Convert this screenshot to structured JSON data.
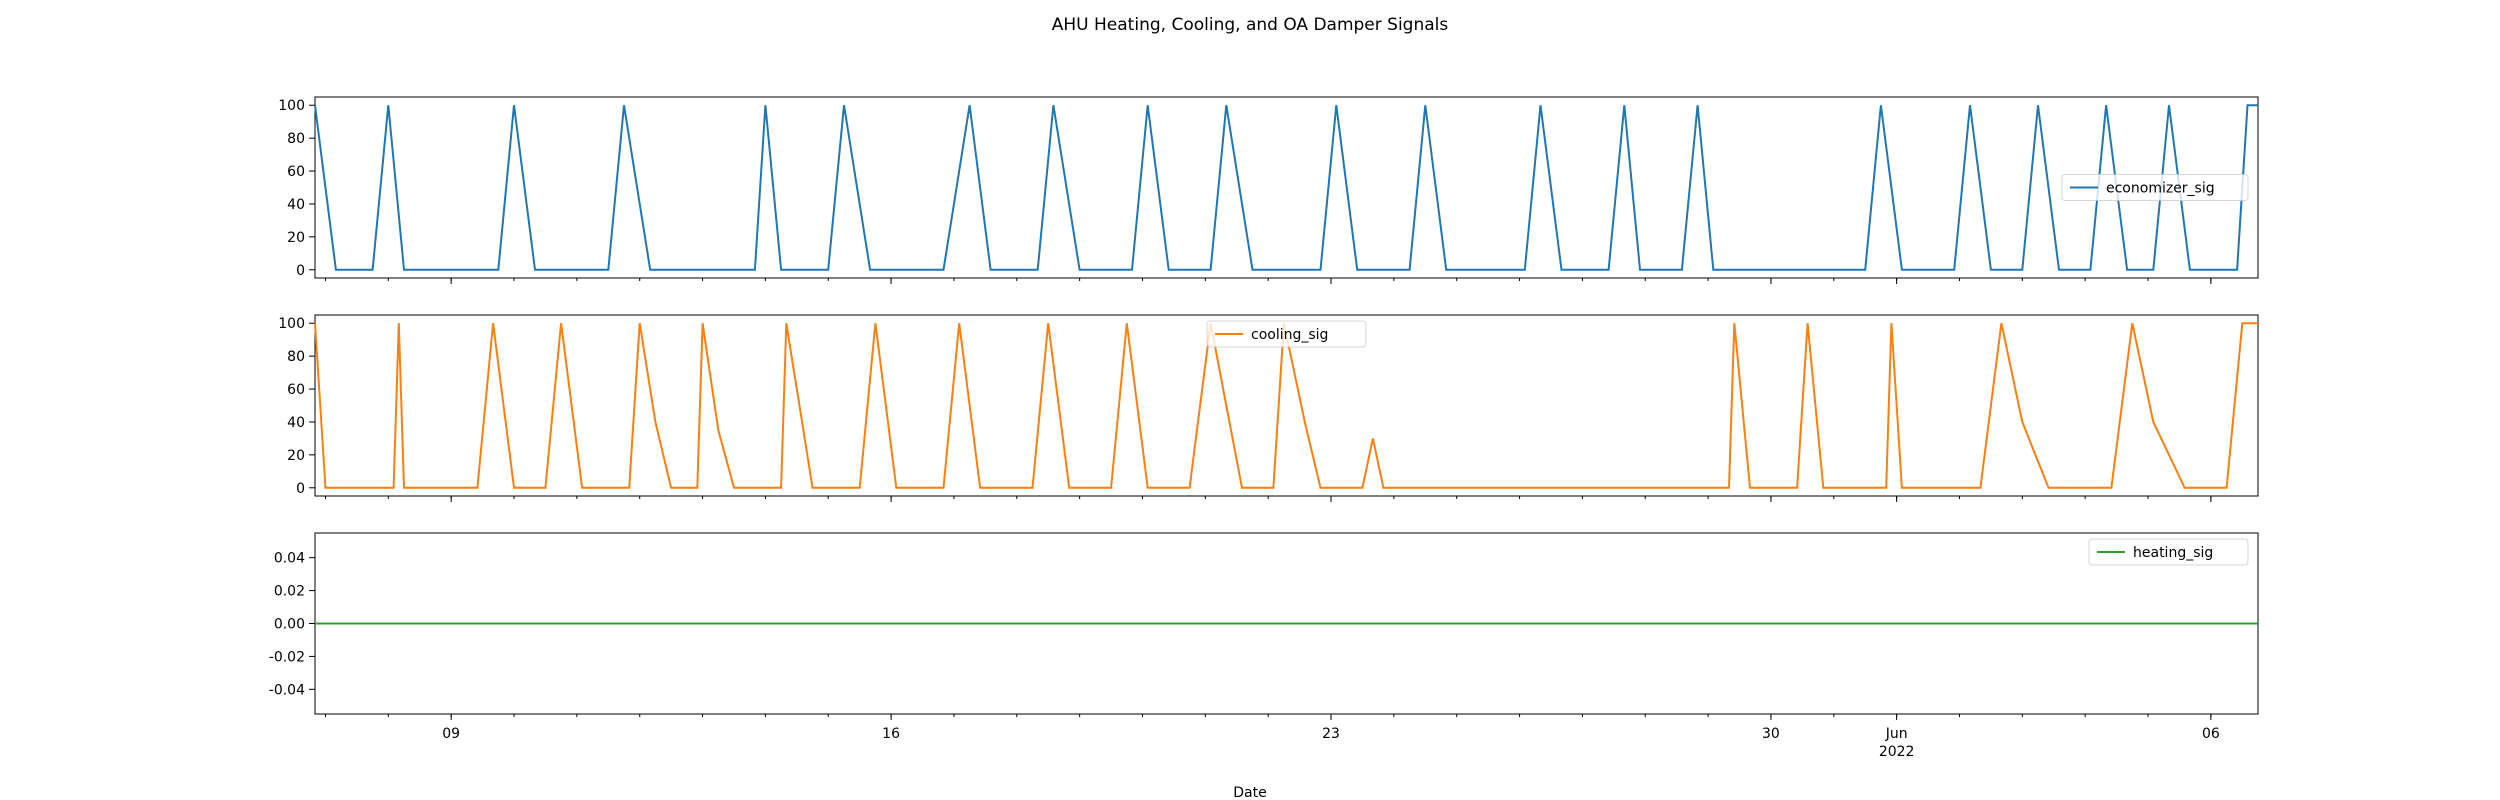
{
  "chart_data": {
    "type": "line",
    "title": "AHU Heating, Cooling, and OA Damper Signals",
    "xlabel": "Date",
    "x_range": [
      "2022-05-06T20:00",
      "2022-06-06T18:00"
    ],
    "x_major_ticks": [
      {
        "date": "2022-05-09",
        "label": "09"
      },
      {
        "date": "2022-05-16",
        "label": "16"
      },
      {
        "date": "2022-05-23",
        "label": "23"
      },
      {
        "date": "2022-05-30",
        "label": "30"
      },
      {
        "date": "2022-06-01",
        "label": "Jun",
        "sublabel": "2022"
      },
      {
        "date": "2022-06-06",
        "label": "06"
      }
    ],
    "panels": [
      {
        "series": "economizer_sig",
        "color": "#1f77b4",
        "ylim": [
          -5,
          105
        ],
        "yticks": [
          "0",
          "20",
          "40",
          "60",
          "80",
          "100"
        ],
        "legend_loc": "center-right",
        "description_points": [
          [
            "2022-05-06T20:00",
            100
          ],
          [
            "2022-05-07T04:00",
            0
          ],
          [
            "2022-05-07T18:00",
            0
          ],
          [
            "2022-05-08T00:00",
            100
          ],
          [
            "2022-05-08T06:00",
            0
          ],
          [
            "2022-05-09T18:00",
            0
          ],
          [
            "2022-05-10T00:00",
            100
          ],
          [
            "2022-05-10T08:00",
            0
          ],
          [
            "2022-05-11T12:00",
            0
          ],
          [
            "2022-05-11T18:00",
            100
          ],
          [
            "2022-05-12T04:00",
            0
          ],
          [
            "2022-05-13T20:00",
            0
          ],
          [
            "2022-05-14T00:00",
            100
          ],
          [
            "2022-05-14T06:00",
            0
          ],
          [
            "2022-05-15T00:00",
            0
          ],
          [
            "2022-05-15T06:00",
            100
          ],
          [
            "2022-05-15T16:00",
            0
          ],
          [
            "2022-05-16T20:00",
            0
          ],
          [
            "2022-05-17T06:00",
            100
          ],
          [
            "2022-05-17T14:00",
            0
          ],
          [
            "2022-05-18T08:00",
            0
          ],
          [
            "2022-05-18T14:00",
            100
          ],
          [
            "2022-05-19T00:00",
            0
          ],
          [
            "2022-05-19T20:00",
            0
          ],
          [
            "2022-05-20T02:00",
            100
          ],
          [
            "2022-05-20T10:00",
            0
          ],
          [
            "2022-05-21T02:00",
            0
          ],
          [
            "2022-05-21T08:00",
            100
          ],
          [
            "2022-05-21T18:00",
            0
          ],
          [
            "2022-05-22T20:00",
            0
          ],
          [
            "2022-05-23T02:00",
            100
          ],
          [
            "2022-05-23T10:00",
            0
          ],
          [
            "2022-05-24T06:00",
            0
          ],
          [
            "2022-05-24T12:00",
            100
          ],
          [
            "2022-05-24T20:00",
            0
          ],
          [
            "2022-05-26T02:00",
            0
          ],
          [
            "2022-05-26T08:00",
            100
          ],
          [
            "2022-05-26T16:00",
            0
          ],
          [
            "2022-05-27T10:00",
            0
          ],
          [
            "2022-05-27T16:00",
            100
          ],
          [
            "2022-05-27T22:00",
            0
          ],
          [
            "2022-05-28T14:00",
            0
          ],
          [
            "2022-05-28T20:00",
            100
          ],
          [
            "2022-05-29T02:00",
            0
          ],
          [
            "2022-05-31T12:00",
            0
          ],
          [
            "2022-05-31T18:00",
            100
          ],
          [
            "2022-06-01T02:00",
            0
          ],
          [
            "2022-06-01T22:00",
            0
          ],
          [
            "2022-06-02T04:00",
            100
          ],
          [
            "2022-06-02T12:00",
            0
          ],
          [
            "2022-06-03T00:00",
            0
          ],
          [
            "2022-06-03T06:00",
            100
          ],
          [
            "2022-06-03T14:00",
            0
          ],
          [
            "2022-06-04T02:00",
            0
          ],
          [
            "2022-06-04T08:00",
            100
          ],
          [
            "2022-06-04T16:00",
            0
          ],
          [
            "2022-06-05T02:00",
            0
          ],
          [
            "2022-06-05T08:00",
            100
          ],
          [
            "2022-06-05T16:00",
            0
          ],
          [
            "2022-06-06T10:00",
            0
          ],
          [
            "2022-06-06T14:00",
            100
          ],
          [
            "2022-06-06T18:00",
            100
          ]
        ]
      },
      {
        "series": "cooling_sig",
        "color": "#ff7f0e",
        "ylim": [
          -5,
          105
        ],
        "yticks": [
          "0",
          "20",
          "40",
          "60",
          "80",
          "100"
        ],
        "legend_loc": "upper-center",
        "description_points": [
          [
            "2022-05-06T20:00",
            100
          ],
          [
            "2022-05-07T00:00",
            0
          ],
          [
            "2022-05-08T02:00",
            0
          ],
          [
            "2022-05-08T04:00",
            100
          ],
          [
            "2022-05-08T06:00",
            0
          ],
          [
            "2022-05-09T10:00",
            0
          ],
          [
            "2022-05-09T16:00",
            100
          ],
          [
            "2022-05-10T00:00",
            0
          ],
          [
            "2022-05-10T12:00",
            0
          ],
          [
            "2022-05-10T18:00",
            100
          ],
          [
            "2022-05-11T02:00",
            0
          ],
          [
            "2022-05-11T20:00",
            0
          ],
          [
            "2022-05-12T00:00",
            100
          ],
          [
            "2022-05-12T06:00",
            40
          ],
          [
            "2022-05-12T12:00",
            0
          ],
          [
            "2022-05-12T22:00",
            0
          ],
          [
            "2022-05-13T00:00",
            100
          ],
          [
            "2022-05-13T06:00",
            35
          ],
          [
            "2022-05-13T12:00",
            0
          ],
          [
            "2022-05-14T06:00",
            0
          ],
          [
            "2022-05-14T08:00",
            100
          ],
          [
            "2022-05-14T14:00",
            40
          ],
          [
            "2022-05-14T18:00",
            0
          ],
          [
            "2022-05-15T12:00",
            0
          ],
          [
            "2022-05-15T18:00",
            100
          ],
          [
            "2022-05-16T02:00",
            0
          ],
          [
            "2022-05-16T20:00",
            0
          ],
          [
            "2022-05-17T02:00",
            100
          ],
          [
            "2022-05-17T10:00",
            0
          ],
          [
            "2022-05-18T06:00",
            0
          ],
          [
            "2022-05-18T12:00",
            100
          ],
          [
            "2022-05-18T20:00",
            0
          ],
          [
            "2022-05-19T12:00",
            0
          ],
          [
            "2022-05-19T18:00",
            100
          ],
          [
            "2022-05-20T02:00",
            0
          ],
          [
            "2022-05-20T18:00",
            0
          ],
          [
            "2022-05-21T02:00",
            100
          ],
          [
            "2022-05-21T14:00",
            0
          ],
          [
            "2022-05-22T02:00",
            0
          ],
          [
            "2022-05-22T06:00",
            100
          ],
          [
            "2022-05-22T14:00",
            40
          ],
          [
            "2022-05-22T20:00",
            0
          ],
          [
            "2022-05-23T12:00",
            0
          ],
          [
            "2022-05-23T16:00",
            30
          ],
          [
            "2022-05-23T20:00",
            0
          ],
          [
            "2022-05-28T12:00",
            0
          ],
          [
            "2022-05-29T08:00",
            0
          ],
          [
            "2022-05-29T10:00",
            100
          ],
          [
            "2022-05-29T16:00",
            0
          ],
          [
            "2022-05-30T10:00",
            0
          ],
          [
            "2022-05-30T14:00",
            100
          ],
          [
            "2022-05-30T20:00",
            0
          ],
          [
            "2022-05-31T20:00",
            0
          ],
          [
            "2022-05-31T22:00",
            100
          ],
          [
            "2022-06-01T02:00",
            0
          ],
          [
            "2022-06-02T08:00",
            0
          ],
          [
            "2022-06-02T16:00",
            100
          ],
          [
            "2022-06-03T00:00",
            40
          ],
          [
            "2022-06-03T10:00",
            0
          ],
          [
            "2022-06-04T10:00",
            0
          ],
          [
            "2022-06-04T18:00",
            100
          ],
          [
            "2022-06-05T02:00",
            40
          ],
          [
            "2022-06-05T14:00",
            0
          ],
          [
            "2022-06-06T06:00",
            0
          ],
          [
            "2022-06-06T12:00",
            100
          ],
          [
            "2022-06-06T18:00",
            100
          ]
        ]
      },
      {
        "series": "heating_sig",
        "color": "#2ca02c",
        "ylim": [
          -0.055,
          0.055
        ],
        "yticks": [
          "0.04",
          "0.02",
          "0.00",
          "-0.02",
          "-0.04"
        ],
        "legend_loc": "upper-right",
        "description_points": [
          [
            "2022-05-06T20:00",
            0
          ],
          [
            "2022-06-06T18:00",
            0
          ]
        ]
      }
    ]
  }
}
